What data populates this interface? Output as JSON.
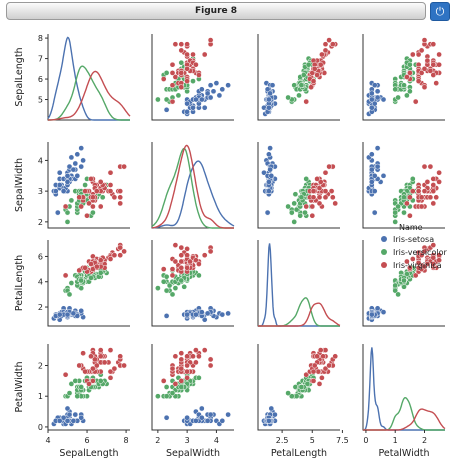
{
  "window": {
    "title": "Figure 8",
    "button_icon": "power-icon"
  },
  "chart_data": {
    "type": "pairplot",
    "variables": [
      "SepalLength",
      "SepalWidth",
      "PetalLength",
      "PetalWidth"
    ],
    "axis_ranges": {
      "SepalLength": [
        4.0,
        8.2
      ],
      "SepalWidth": [
        1.8,
        4.6
      ],
      "PetalLength": [
        0.5,
        7.3
      ],
      "PetalWidth": [
        -0.1,
        2.7
      ]
    },
    "ticks": {
      "SepalLength": [
        4,
        6,
        8
      ],
      "SepalWidth": [
        2,
        3,
        4
      ],
      "PetalLength": [
        2.5,
        5.0,
        7.5
      ],
      "PetalWidth": [
        0,
        1,
        2
      ]
    },
    "y_ticks": {
      "SepalLength": [
        5,
        6,
        7,
        8
      ],
      "SepalWidth": [
        2,
        3,
        4
      ],
      "PetalLength": [
        2,
        4,
        6
      ],
      "PetalWidth": [
        0,
        1,
        2
      ]
    },
    "legend": {
      "title": "Name",
      "placement": "right, row 3",
      "entries": [
        "Iris-setosa",
        "Iris-versicolor",
        "Iris-virginica"
      ]
    },
    "colors": {
      "Iris-setosa": "#4c72b0",
      "Iris-versicolor": "#55a868",
      "Iris-virginica": "#c44e52"
    },
    "diagonal": "kde",
    "grid": false,
    "series": [
      {
        "name": "Iris-setosa",
        "points": [
          [
            5.1,
            3.5,
            1.4,
            0.2
          ],
          [
            4.9,
            3.0,
            1.4,
            0.2
          ],
          [
            4.7,
            3.2,
            1.3,
            0.2
          ],
          [
            4.6,
            3.1,
            1.5,
            0.2
          ],
          [
            5.0,
            3.6,
            1.4,
            0.2
          ],
          [
            5.4,
            3.9,
            1.7,
            0.4
          ],
          [
            4.6,
            3.4,
            1.4,
            0.3
          ],
          [
            5.0,
            3.4,
            1.5,
            0.2
          ],
          [
            4.4,
            2.9,
            1.4,
            0.2
          ],
          [
            4.9,
            3.1,
            1.5,
            0.1
          ],
          [
            5.4,
            3.7,
            1.5,
            0.2
          ],
          [
            4.8,
            3.4,
            1.6,
            0.2
          ],
          [
            4.8,
            3.0,
            1.4,
            0.1
          ],
          [
            4.3,
            3.0,
            1.1,
            0.1
          ],
          [
            5.8,
            4.0,
            1.2,
            0.2
          ],
          [
            5.7,
            4.4,
            1.5,
            0.4
          ],
          [
            5.4,
            3.9,
            1.3,
            0.4
          ],
          [
            5.1,
            3.5,
            1.4,
            0.3
          ],
          [
            5.7,
            3.8,
            1.7,
            0.3
          ],
          [
            5.1,
            3.8,
            1.5,
            0.3
          ],
          [
            5.4,
            3.4,
            1.7,
            0.2
          ],
          [
            5.1,
            3.7,
            1.5,
            0.4
          ],
          [
            4.6,
            3.6,
            1.0,
            0.2
          ],
          [
            5.1,
            3.3,
            1.7,
            0.5
          ],
          [
            4.8,
            3.4,
            1.9,
            0.2
          ],
          [
            5.0,
            3.0,
            1.6,
            0.2
          ],
          [
            5.0,
            3.4,
            1.6,
            0.4
          ],
          [
            5.2,
            3.5,
            1.5,
            0.2
          ],
          [
            5.2,
            3.4,
            1.4,
            0.2
          ],
          [
            4.7,
            3.2,
            1.6,
            0.2
          ],
          [
            4.8,
            3.1,
            1.6,
            0.2
          ],
          [
            5.4,
            3.4,
            1.5,
            0.4
          ],
          [
            5.2,
            4.1,
            1.5,
            0.1
          ],
          [
            5.5,
            4.2,
            1.4,
            0.2
          ],
          [
            4.9,
            3.1,
            1.5,
            0.1
          ],
          [
            5.0,
            3.2,
            1.2,
            0.2
          ],
          [
            5.5,
            3.5,
            1.3,
            0.2
          ],
          [
            4.4,
            3.0,
            1.3,
            0.2
          ],
          [
            5.1,
            3.4,
            1.5,
            0.2
          ],
          [
            5.0,
            3.5,
            1.3,
            0.3
          ],
          [
            4.5,
            2.3,
            1.3,
            0.3
          ],
          [
            4.4,
            3.2,
            1.3,
            0.2
          ],
          [
            5.0,
            3.5,
            1.6,
            0.6
          ],
          [
            5.1,
            3.8,
            1.9,
            0.4
          ],
          [
            4.8,
            3.0,
            1.4,
            0.3
          ],
          [
            5.1,
            3.8,
            1.6,
            0.2
          ],
          [
            4.6,
            3.2,
            1.4,
            0.2
          ],
          [
            5.3,
            3.7,
            1.5,
            0.2
          ],
          [
            5.0,
            3.3,
            1.4,
            0.2
          ]
        ]
      },
      {
        "name": "Iris-versicolor",
        "points": [
          [
            7.0,
            3.2,
            4.7,
            1.4
          ],
          [
            6.4,
            3.2,
            4.5,
            1.5
          ],
          [
            6.9,
            3.1,
            4.9,
            1.5
          ],
          [
            5.5,
            2.3,
            4.0,
            1.3
          ],
          [
            6.5,
            2.8,
            4.6,
            1.5
          ],
          [
            5.7,
            2.8,
            4.5,
            1.3
          ],
          [
            6.3,
            3.3,
            4.7,
            1.6
          ],
          [
            4.9,
            2.4,
            3.3,
            1.0
          ],
          [
            6.6,
            2.9,
            4.6,
            1.3
          ],
          [
            5.2,
            2.7,
            3.9,
            1.4
          ],
          [
            5.0,
            2.0,
            3.5,
            1.0
          ],
          [
            5.9,
            3.0,
            4.2,
            1.5
          ],
          [
            6.0,
            2.2,
            4.0,
            1.0
          ],
          [
            6.1,
            2.9,
            4.7,
            1.4
          ],
          [
            5.6,
            2.9,
            3.6,
            1.3
          ],
          [
            6.7,
            3.1,
            4.4,
            1.4
          ],
          [
            5.6,
            3.0,
            4.5,
            1.5
          ],
          [
            5.8,
            2.7,
            4.1,
            1.0
          ],
          [
            6.2,
            2.2,
            4.5,
            1.5
          ],
          [
            5.6,
            2.5,
            3.9,
            1.1
          ],
          [
            5.9,
            3.2,
            4.8,
            1.8
          ],
          [
            6.1,
            2.8,
            4.0,
            1.3
          ],
          [
            6.3,
            2.5,
            4.9,
            1.5
          ],
          [
            6.1,
            2.8,
            4.7,
            1.2
          ],
          [
            6.4,
            2.9,
            4.3,
            1.3
          ],
          [
            6.6,
            3.0,
            4.4,
            1.4
          ],
          [
            6.8,
            2.8,
            4.8,
            1.4
          ],
          [
            6.7,
            3.0,
            5.0,
            1.7
          ],
          [
            6.0,
            2.9,
            4.5,
            1.5
          ],
          [
            5.7,
            2.6,
            3.5,
            1.0
          ],
          [
            5.5,
            2.4,
            3.8,
            1.1
          ],
          [
            5.5,
            2.4,
            3.7,
            1.0
          ],
          [
            5.8,
            2.7,
            3.9,
            1.2
          ],
          [
            6.0,
            2.7,
            5.1,
            1.6
          ],
          [
            5.4,
            3.0,
            4.5,
            1.5
          ],
          [
            6.0,
            3.4,
            4.5,
            1.6
          ],
          [
            6.7,
            3.1,
            4.7,
            1.5
          ],
          [
            6.3,
            2.3,
            4.4,
            1.3
          ],
          [
            5.6,
            3.0,
            4.1,
            1.3
          ],
          [
            5.5,
            2.5,
            4.0,
            1.3
          ],
          [
            5.5,
            2.6,
            4.4,
            1.2
          ],
          [
            6.1,
            3.0,
            4.6,
            1.4
          ],
          [
            5.8,
            2.6,
            4.0,
            1.2
          ],
          [
            5.0,
            2.3,
            3.3,
            1.0
          ],
          [
            5.6,
            2.7,
            4.2,
            1.3
          ],
          [
            5.7,
            3.0,
            4.2,
            1.2
          ],
          [
            5.7,
            2.9,
            4.2,
            1.3
          ],
          [
            6.2,
            2.9,
            4.3,
            1.3
          ],
          [
            5.1,
            2.5,
            3.0,
            1.1
          ],
          [
            5.7,
            2.8,
            4.1,
            1.3
          ]
        ]
      },
      {
        "name": "Iris-virginica",
        "points": [
          [
            6.3,
            3.3,
            6.0,
            2.5
          ],
          [
            5.8,
            2.7,
            5.1,
            1.9
          ],
          [
            7.1,
            3.0,
            5.9,
            2.1
          ],
          [
            6.3,
            2.9,
            5.6,
            1.8
          ],
          [
            6.5,
            3.0,
            5.8,
            2.2
          ],
          [
            7.6,
            3.0,
            6.6,
            2.1
          ],
          [
            4.9,
            2.5,
            4.5,
            1.7
          ],
          [
            7.3,
            2.9,
            6.3,
            1.8
          ],
          [
            6.7,
            2.5,
            5.8,
            1.8
          ],
          [
            7.2,
            3.6,
            6.1,
            2.5
          ],
          [
            6.5,
            3.2,
            5.1,
            2.0
          ],
          [
            6.4,
            2.7,
            5.3,
            1.9
          ],
          [
            6.8,
            3.0,
            5.5,
            2.1
          ],
          [
            5.7,
            2.5,
            5.0,
            2.0
          ],
          [
            5.8,
            2.8,
            5.1,
            2.4
          ],
          [
            6.4,
            3.2,
            5.3,
            2.3
          ],
          [
            6.5,
            3.0,
            5.5,
            1.8
          ],
          [
            7.7,
            3.8,
            6.7,
            2.2
          ],
          [
            7.7,
            2.6,
            6.9,
            2.3
          ],
          [
            6.0,
            2.2,
            5.0,
            1.5
          ],
          [
            6.9,
            3.2,
            5.7,
            2.3
          ],
          [
            5.6,
            2.8,
            4.9,
            2.0
          ],
          [
            7.7,
            2.8,
            6.7,
            2.0
          ],
          [
            6.3,
            2.7,
            4.9,
            1.8
          ],
          [
            6.7,
            3.3,
            5.7,
            2.1
          ],
          [
            7.2,
            3.2,
            6.0,
            1.8
          ],
          [
            6.2,
            2.8,
            4.8,
            1.8
          ],
          [
            6.1,
            3.0,
            4.9,
            1.8
          ],
          [
            6.4,
            2.8,
            5.6,
            2.1
          ],
          [
            7.2,
            3.0,
            5.8,
            1.6
          ],
          [
            7.4,
            2.8,
            6.1,
            1.9
          ],
          [
            7.9,
            3.8,
            6.4,
            2.0
          ],
          [
            6.4,
            2.8,
            5.6,
            2.2
          ],
          [
            6.3,
            2.8,
            5.1,
            1.5
          ],
          [
            6.1,
            2.6,
            5.6,
            1.4
          ],
          [
            7.7,
            3.0,
            6.1,
            2.3
          ],
          [
            6.3,
            3.4,
            5.6,
            2.4
          ],
          [
            6.4,
            3.1,
            5.5,
            1.8
          ],
          [
            6.0,
            3.0,
            4.8,
            1.8
          ],
          [
            6.9,
            3.1,
            5.4,
            2.1
          ],
          [
            6.7,
            3.1,
            5.6,
            2.4
          ],
          [
            6.9,
            3.1,
            5.1,
            2.3
          ],
          [
            6.8,
            3.2,
            5.9,
            2.3
          ],
          [
            6.7,
            3.3,
            5.7,
            2.5
          ],
          [
            6.7,
            3.0,
            5.2,
            2.3
          ],
          [
            6.3,
            2.5,
            5.0,
            1.9
          ],
          [
            6.5,
            3.0,
            5.2,
            2.0
          ],
          [
            6.2,
            3.4,
            5.4,
            2.3
          ],
          [
            5.9,
            3.0,
            5.1,
            1.8
          ]
        ]
      }
    ]
  }
}
